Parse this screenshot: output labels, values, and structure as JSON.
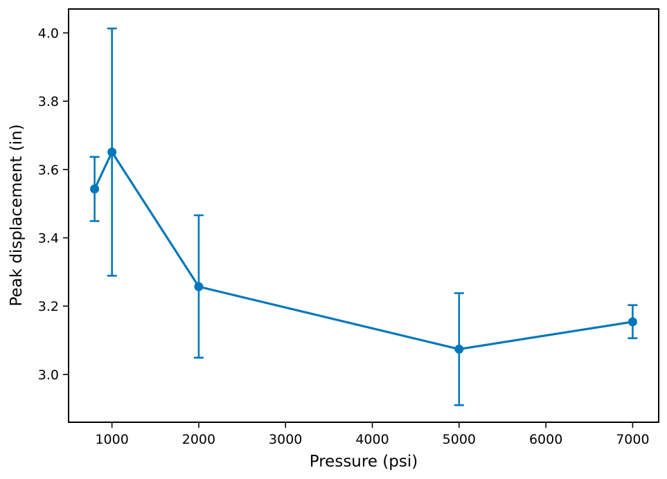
{
  "chart_data": {
    "type": "line",
    "title": "",
    "xlabel": "Pressure (psi)",
    "ylabel": "Peak displacement (in)",
    "xlim": [
      500,
      7300
    ],
    "ylim": [
      2.86,
      4.07
    ],
    "x_ticks": [
      1000,
      2000,
      3000,
      4000,
      5000,
      6000,
      7000
    ],
    "y_ticks": [
      3.0,
      3.2,
      3.4,
      3.6,
      3.8,
      4.0
    ],
    "x_tick_labels": [
      "1000",
      "2000",
      "3000",
      "4000",
      "5000",
      "6000",
      "7000"
    ],
    "y_tick_labels": [
      "3.0",
      "3.2",
      "3.4",
      "3.6",
      "3.8",
      "4.0"
    ],
    "grid": false,
    "legend": false,
    "series": [
      {
        "color": "#0077bb",
        "marker": "circle",
        "error_bars": true,
        "points": [
          {
            "x": 800,
            "y": 3.543,
            "y_low": 3.449,
            "y_high": 3.637
          },
          {
            "x": 1000,
            "y": 3.651,
            "y_low": 3.289,
            "y_high": 4.013
          },
          {
            "x": 2000,
            "y": 3.257,
            "y_low": 3.049,
            "y_high": 3.466
          },
          {
            "x": 5000,
            "y": 3.074,
            "y_low": 2.91,
            "y_high": 3.238
          },
          {
            "x": 7000,
            "y": 3.154,
            "y_low": 3.106,
            "y_high": 3.203
          }
        ]
      }
    ]
  }
}
